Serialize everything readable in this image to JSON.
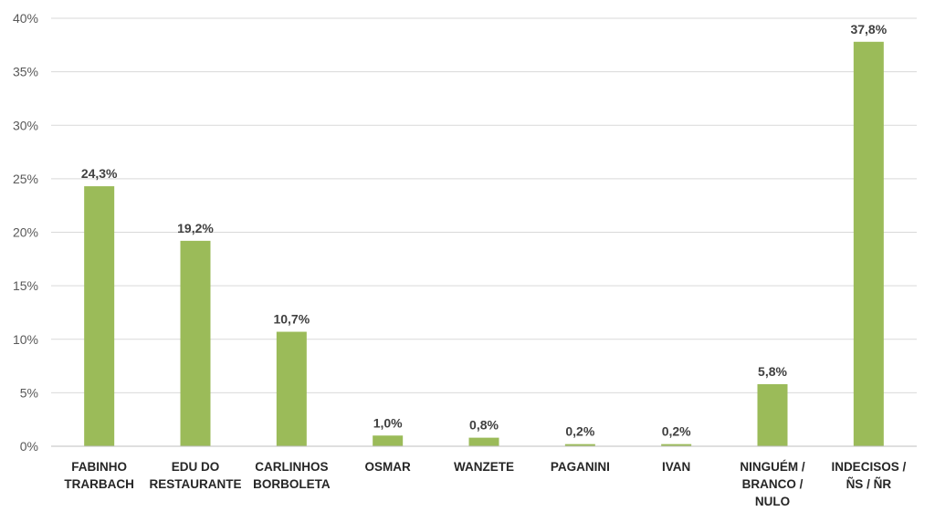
{
  "chart_data": {
    "type": "bar",
    "title": "",
    "xlabel": "",
    "ylabel": "",
    "ylim": [
      0,
      40
    ],
    "y_ticks": [
      "0%",
      "5%",
      "10%",
      "15%",
      "20%",
      "25%",
      "30%",
      "35%",
      "40%"
    ],
    "grid": true,
    "legend": "none",
    "bar_color": "#9bbb59",
    "categories": [
      [
        "FABINHO",
        "TRARBACH"
      ],
      [
        "EDU DO",
        "RESTAURANTE"
      ],
      [
        "CARLINHOS",
        "BORBOLETA"
      ],
      [
        "OSMAR"
      ],
      [
        "WANZETE"
      ],
      [
        "PAGANINI"
      ],
      [
        "IVAN"
      ],
      [
        "NINGUÉM /",
        "BRANCO /",
        "NULO"
      ],
      [
        "INDECISOS /",
        "ÑS / ÑR"
      ]
    ],
    "values": [
      24.3,
      19.2,
      10.7,
      1.0,
      0.8,
      0.2,
      0.2,
      5.8,
      37.8
    ],
    "data_labels": [
      "24,3%",
      "19,2%",
      "10,7%",
      "1,0%",
      "0,8%",
      "0,2%",
      "0,2%",
      "5,8%",
      "37,8%"
    ]
  }
}
